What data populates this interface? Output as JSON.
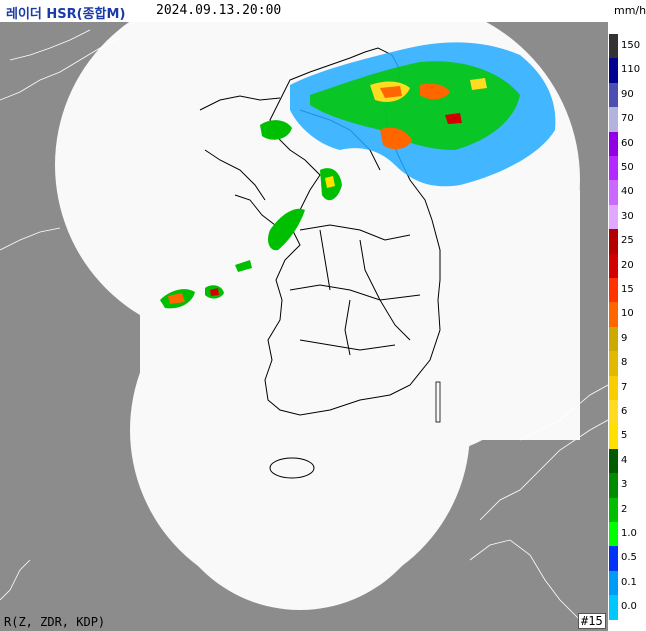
{
  "header": {
    "title": "레이더 HSR(종합M)",
    "timestamp": "2024.09.13.20:00",
    "unit": "mm/h"
  },
  "legend": {
    "levels": [
      {
        "label": "150",
        "color": "#333333"
      },
      {
        "label": "110",
        "color": "#000390"
      },
      {
        "label": "90",
        "color": "#4c4eb1"
      },
      {
        "label": "70",
        "color": "#b3b4de"
      },
      {
        "label": "60",
        "color": "#9300e4"
      },
      {
        "label": "50",
        "color": "#b329ff"
      },
      {
        "label": "40",
        "color": "#c969ff"
      },
      {
        "label": "30",
        "color": "#e0a9ff"
      },
      {
        "label": "25",
        "color": "#b40000"
      },
      {
        "label": "20",
        "color": "#d20000"
      },
      {
        "label": "15",
        "color": "#ff3200"
      },
      {
        "label": "10",
        "color": "#ff6600"
      },
      {
        "label": "9",
        "color": "#ccaa00"
      },
      {
        "label": "8",
        "color": "#e0b900"
      },
      {
        "label": "7",
        "color": "#f9cd00"
      },
      {
        "label": "6",
        "color": "#ffdc1f"
      },
      {
        "label": "5",
        "color": "#ffe100"
      },
      {
        "label": "4",
        "color": "#005a00"
      },
      {
        "label": "3",
        "color": "#008c00"
      },
      {
        "label": "2",
        "color": "#00be00"
      },
      {
        "label": "1.0",
        "color": "#00ff00"
      },
      {
        "label": "0.5",
        "color": "#0033f5"
      },
      {
        "label": "0.1",
        "color": "#009bf5"
      },
      {
        "label": "0.0",
        "color": "#00c8ff"
      }
    ]
  },
  "footer": {
    "variables": "R(Z, ZDR, KDP)",
    "frame": "#15"
  },
  "colors": {
    "background": "#8c8c8c",
    "coverage": "#f9f9f9",
    "coastline": "#000000"
  }
}
